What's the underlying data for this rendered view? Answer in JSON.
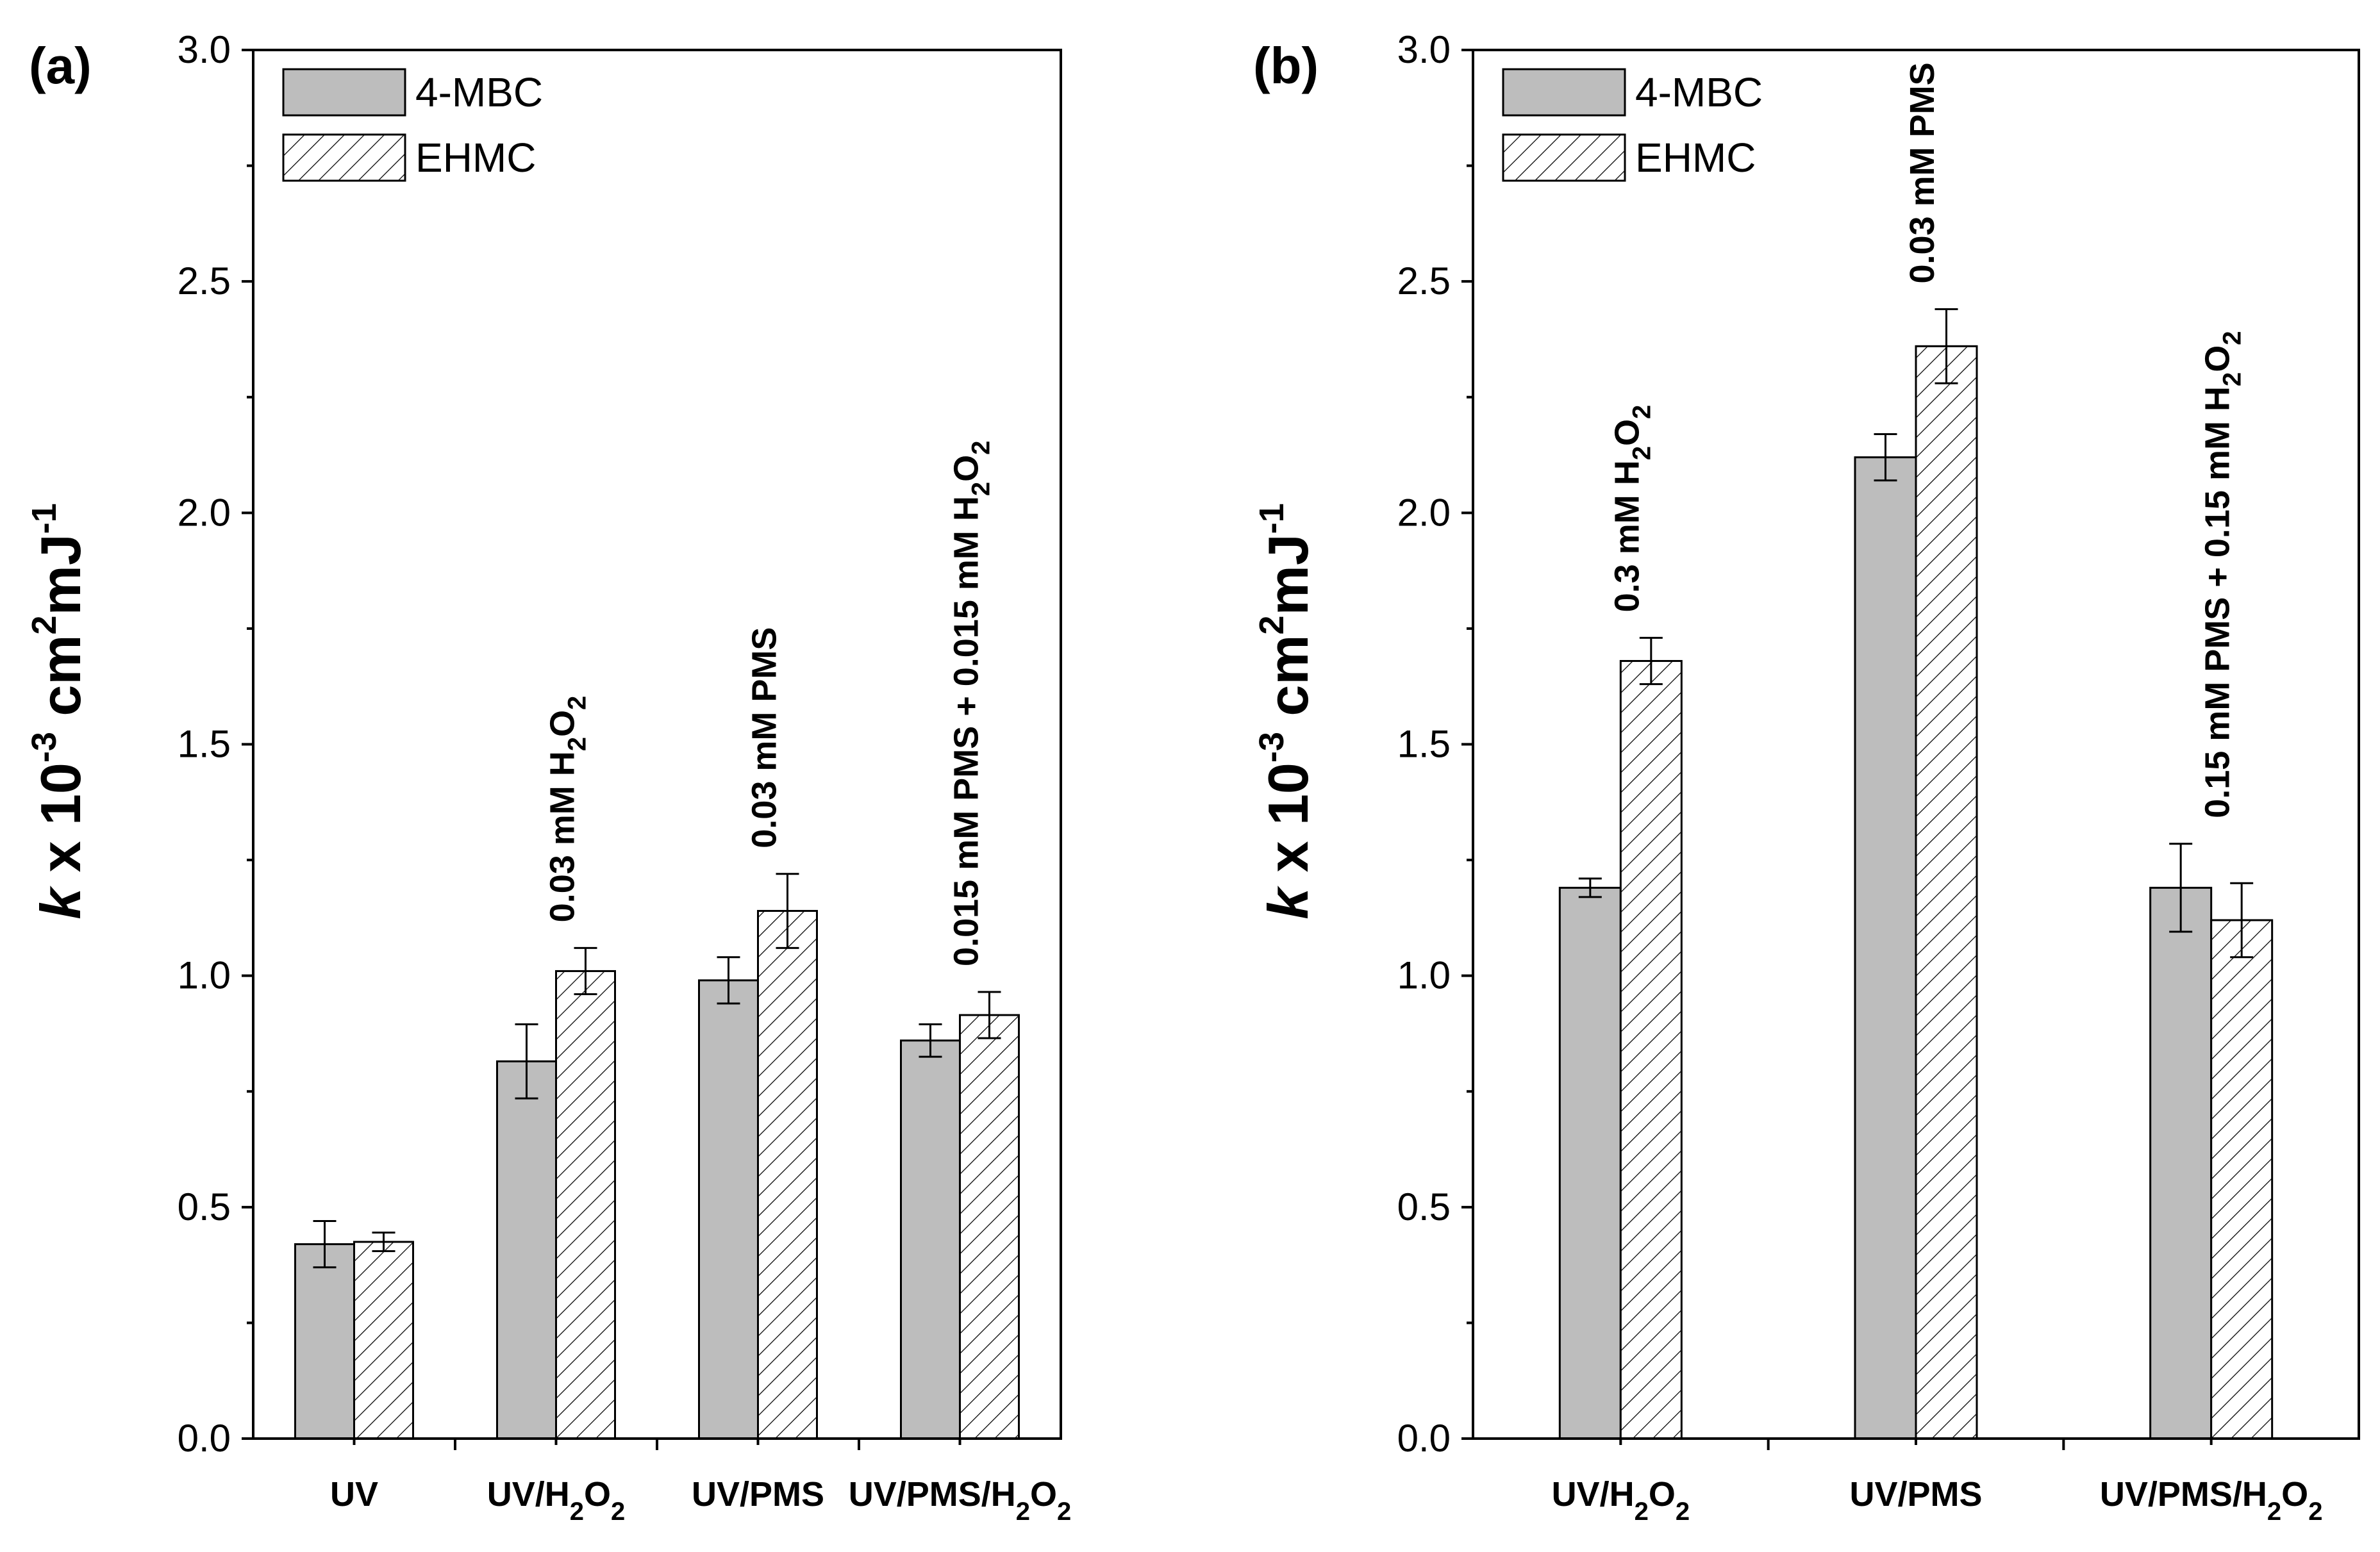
{
  "chart_data": [
    {
      "type": "bar",
      "panel_label": "(a)",
      "ylabel": {
        "k": "k",
        "main": " x 10",
        "exp1": "-3",
        "cm": " cm",
        "exp2": "2",
        "mj": "mJ",
        "exp3": "-1"
      },
      "ylim": [
        0.0,
        3.0
      ],
      "yticks": [
        "0.0",
        "0.5",
        "1.0",
        "1.5",
        "2.0",
        "2.5",
        "3.0"
      ],
      "legend": {
        "position": "top-left",
        "entries": [
          "4-MBC",
          "EHMC"
        ]
      },
      "categories": [
        {
          "base": "UV",
          "sub1": "",
          "mid": "",
          "sub2": ""
        },
        {
          "base": "UV/H",
          "sub1": "2",
          "mid": "O",
          "sub2": "2"
        },
        {
          "base": "UV/PMS",
          "sub1": "",
          "mid": "",
          "sub2": ""
        },
        {
          "base": "UV/PMS/H",
          "sub1": "2",
          "mid": "O",
          "sub2": "2"
        }
      ],
      "annotations": [
        {
          "text": "",
          "sub1": "",
          "mid": "",
          "sub2": ""
        },
        {
          "text": "0.03 mM H",
          "sub1": "2",
          "mid": "O",
          "sub2": "2"
        },
        {
          "text": "0.03 mM PMS",
          "sub1": "",
          "mid": "",
          "sub2": ""
        },
        {
          "text": "0.015 mM PMS + 0.015 mM H",
          "sub1": "2",
          "mid": "O",
          "sub2": "2"
        }
      ],
      "series": [
        {
          "name": "4-MBC",
          "pattern": "solid",
          "values": [
            0.42,
            0.815,
            0.99,
            0.86
          ],
          "errors": [
            0.05,
            0.08,
            0.05,
            0.035
          ]
        },
        {
          "name": "EHMC",
          "pattern": "hatched",
          "values": [
            0.425,
            1.01,
            1.14,
            0.915
          ],
          "errors": [
            0.02,
            0.05,
            0.08,
            0.05
          ]
        }
      ]
    },
    {
      "type": "bar",
      "panel_label": "(b)",
      "ylabel": {
        "k": "k",
        "main": " x 10",
        "exp1": "-3",
        "cm": " cm",
        "exp2": "2",
        "mj": "mJ",
        "exp3": "-1"
      },
      "ylim": [
        0.0,
        3.0
      ],
      "yticks": [
        "0.0",
        "0.5",
        "1.0",
        "1.5",
        "2.0",
        "2.5",
        "3.0"
      ],
      "legend": {
        "position": "top-left",
        "entries": [
          "4-MBC",
          "EHMC"
        ]
      },
      "categories": [
        {
          "base": "UV/H",
          "sub1": "2",
          "mid": "O",
          "sub2": "2"
        },
        {
          "base": "UV/PMS",
          "sub1": "",
          "mid": "",
          "sub2": ""
        },
        {
          "base": "UV/PMS/H",
          "sub1": "2",
          "mid": "O",
          "sub2": "2"
        }
      ],
      "annotations": [
        {
          "text": "0.3 mM H",
          "sub1": "2",
          "mid": "O",
          "sub2": "2"
        },
        {
          "text": "0.03 mM PMS",
          "sub1": "",
          "mid": "",
          "sub2": ""
        },
        {
          "text": "0.15 mM PMS + 0.15 mM H",
          "sub1": "2",
          "mid": "O",
          "sub2": "2"
        }
      ],
      "series": [
        {
          "name": "4-MBC",
          "pattern": "solid",
          "values": [
            1.19,
            2.12,
            1.19
          ],
          "errors": [
            0.02,
            0.05,
            0.095
          ]
        },
        {
          "name": "EHMC",
          "pattern": "hatched",
          "values": [
            1.68,
            2.36,
            1.12
          ],
          "errors": [
            0.05,
            0.08,
            0.08
          ]
        }
      ]
    }
  ],
  "colors": {
    "bar_fill": "#bdbdbd",
    "hatch_bg": "#ffffff",
    "ink": "#000000"
  }
}
